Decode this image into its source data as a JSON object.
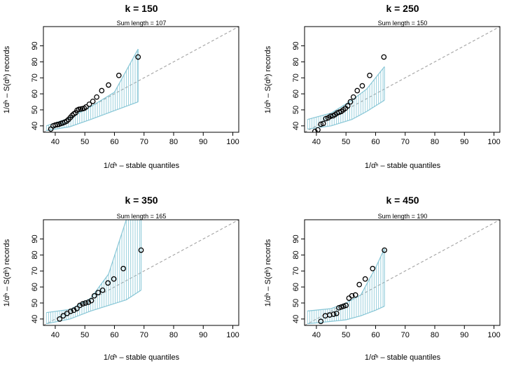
{
  "xlabel": "1/α̂ⁿ – stable quantiles",
  "ylabel": "1/α̂ⁿ – S(α̂ⁿ) records",
  "chart_data": [
    {
      "type": "scatter",
      "title": "k = 150",
      "subtitle": "Sum length = 107",
      "xlim": [
        36,
        102
      ],
      "ylim": [
        36,
        102
      ],
      "xticks": [
        40,
        50,
        60,
        70,
        80,
        90,
        100
      ],
      "yticks": [
        40,
        50,
        60,
        70,
        80,
        90
      ],
      "points": [
        [
          38.5,
          38
        ],
        [
          39.3,
          40
        ],
        [
          40,
          40.5
        ],
        [
          40.7,
          40.8
        ],
        [
          41.3,
          41
        ],
        [
          41.9,
          41.5
        ],
        [
          42.5,
          41.8
        ],
        [
          43.2,
          42.3
        ],
        [
          43.9,
          43
        ],
        [
          44.5,
          44
        ],
        [
          45.1,
          45.2
        ],
        [
          45.7,
          46.5
        ],
        [
          46.3,
          47.5
        ],
        [
          46.9,
          48.2
        ],
        [
          47.4,
          49.8
        ],
        [
          48,
          50.3
        ],
        [
          48.6,
          50.5
        ],
        [
          49.2,
          50.7
        ],
        [
          49.8,
          51
        ],
        [
          50.4,
          51.8
        ],
        [
          51.5,
          53.5
        ],
        [
          52.7,
          55.3
        ],
        [
          54,
          58
        ],
        [
          55.7,
          62
        ],
        [
          58,
          65.5
        ],
        [
          61.5,
          71.5
        ],
        [
          68,
          83
        ]
      ],
      "band_upper": [
        [
          37,
          40
        ],
        [
          45,
          45
        ],
        [
          52,
          52
        ],
        [
          60,
          61
        ],
        [
          68,
          88
        ]
      ],
      "band_lower": [
        [
          37,
          37
        ],
        [
          45,
          39.5
        ],
        [
          52,
          44
        ],
        [
          60,
          49.5
        ],
        [
          68,
          55
        ]
      ]
    },
    {
      "type": "scatter",
      "title": "k = 250",
      "subtitle": "Sum length = 150",
      "xlim": [
        36,
        102
      ],
      "ylim": [
        36,
        102
      ],
      "xticks": [
        40,
        50,
        60,
        70,
        80,
        90,
        100
      ],
      "yticks": [
        40,
        50,
        60,
        70,
        80,
        90
      ],
      "points": [
        [
          39.5,
          36.5
        ],
        [
          40.5,
          37.5
        ],
        [
          41.5,
          41
        ],
        [
          42.3,
          41.5
        ],
        [
          43.2,
          44.5
        ],
        [
          44,
          45
        ],
        [
          44.8,
          46
        ],
        [
          45.6,
          46.3
        ],
        [
          46.3,
          47
        ],
        [
          47,
          48
        ],
        [
          47.7,
          48.5
        ],
        [
          48.4,
          49
        ],
        [
          49.1,
          50
        ],
        [
          49.8,
          51
        ],
        [
          50.6,
          52.5
        ],
        [
          51.5,
          55
        ],
        [
          52.5,
          58
        ],
        [
          53.8,
          62
        ],
        [
          55.5,
          65
        ],
        [
          58,
          71.5
        ],
        [
          62.8,
          83
        ]
      ],
      "band_upper": [
        [
          37,
          44
        ],
        [
          45,
          48
        ],
        [
          52,
          56
        ],
        [
          57,
          63
        ],
        [
          63,
          77
        ]
      ],
      "band_lower": [
        [
          37,
          38
        ],
        [
          45,
          40
        ],
        [
          52,
          44
        ],
        [
          57,
          49
        ],
        [
          63,
          56
        ]
      ]
    },
    {
      "type": "scatter",
      "title": "k = 350",
      "subtitle": "Sum length = 165",
      "xlim": [
        36,
        102
      ],
      "ylim": [
        36,
        102
      ],
      "xticks": [
        40,
        50,
        60,
        70,
        80,
        90,
        100
      ],
      "yticks": [
        40,
        50,
        60,
        70,
        80,
        90
      ],
      "points": [
        [
          41.5,
          40
        ],
        [
          42.7,
          42
        ],
        [
          44,
          43.5
        ],
        [
          45.2,
          44.8
        ],
        [
          46.3,
          45.5
        ],
        [
          47.3,
          46.5
        ],
        [
          48.3,
          48.5
        ],
        [
          49.3,
          49.5
        ],
        [
          50.2,
          50
        ],
        [
          51.2,
          50.5
        ],
        [
          52.2,
          51.5
        ],
        [
          53.2,
          54.5
        ],
        [
          54.5,
          56.5
        ],
        [
          56,
          58
        ],
        [
          57.8,
          62.5
        ],
        [
          59.8,
          65
        ],
        [
          63,
          71.5
        ],
        [
          69,
          83
        ]
      ],
      "band_upper": [
        [
          37,
          44
        ],
        [
          45,
          46
        ],
        [
          52,
          53
        ],
        [
          58,
          68
        ],
        [
          64,
          102
        ],
        [
          69,
          102
        ]
      ],
      "band_lower": [
        [
          37,
          37
        ],
        [
          45,
          40
        ],
        [
          52,
          45
        ],
        [
          58,
          48.5
        ],
        [
          64,
          52
        ],
        [
          69,
          58
        ]
      ]
    },
    {
      "type": "scatter",
      "title": "k = 450",
      "subtitle": "Sum length = 190",
      "xlim": [
        36,
        102
      ],
      "ylim": [
        36,
        102
      ],
      "xticks": [
        40,
        50,
        60,
        70,
        80,
        90,
        100
      ],
      "yticks": [
        40,
        50,
        60,
        70,
        80,
        90
      ],
      "points": [
        [
          41.5,
          38.5
        ],
        [
          43,
          42
        ],
        [
          44.5,
          42.5
        ],
        [
          45.8,
          43
        ],
        [
          46.8,
          43.5
        ],
        [
          47.6,
          47
        ],
        [
          48.4,
          47.5
        ],
        [
          49.2,
          48
        ],
        [
          50,
          48.5
        ],
        [
          51,
          53
        ],
        [
          52,
          54.5
        ],
        [
          53.2,
          55
        ],
        [
          54.5,
          61.5
        ],
        [
          56.5,
          65
        ],
        [
          59,
          71.5
        ],
        [
          63,
          83
        ]
      ],
      "band_upper": [
        [
          37,
          45
        ],
        [
          45,
          46.5
        ],
        [
          50,
          50
        ],
        [
          55,
          55
        ],
        [
          60,
          72
        ],
        [
          63,
          84
        ]
      ],
      "band_lower": [
        [
          37,
          37
        ],
        [
          45,
          38.5
        ],
        [
          50,
          39.5
        ],
        [
          55,
          42
        ],
        [
          60,
          45.5
        ],
        [
          63,
          48
        ]
      ]
    }
  ]
}
